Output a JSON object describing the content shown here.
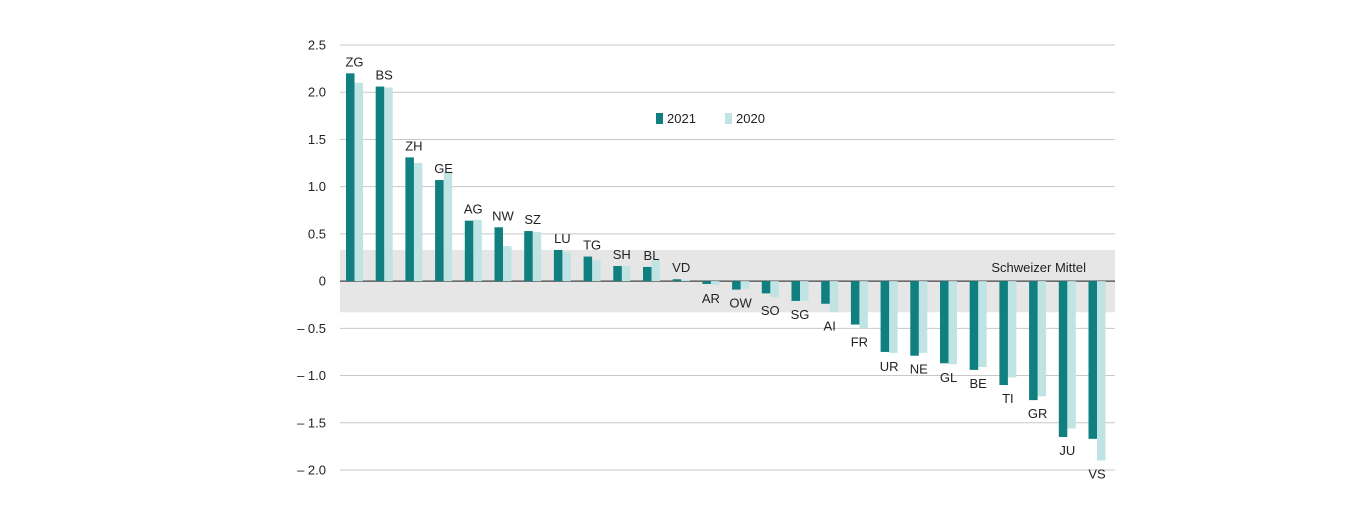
{
  "chart_data": {
    "type": "bar",
    "title": "",
    "xlabel": "",
    "ylabel": "",
    "ylim": [
      -2.0,
      2.5
    ],
    "yticks": [
      2.5,
      2.0,
      1.5,
      1.0,
      0.5,
      0,
      -0.5,
      -1.0,
      -1.5,
      -2.0
    ],
    "ytick_labels": [
      "2.5",
      "2.0",
      "1.5",
      "1.0",
      "0.5",
      "0",
      "– 0.5",
      "– 1.0",
      "– 1.5",
      "– 2.0"
    ],
    "grid": true,
    "legend_position": "top-center",
    "categories": [
      "ZG",
      "BS",
      "ZH",
      "GE",
      "AG",
      "NW",
      "SZ",
      "LU",
      "TG",
      "SH",
      "BL",
      "VD",
      "AR",
      "OW",
      "SO",
      "SG",
      "AI",
      "FR",
      "UR",
      "NE",
      "GL",
      "BE",
      "TI",
      "GR",
      "JU",
      "VS"
    ],
    "series": [
      {
        "name": "2021",
        "color": "#0f7f80",
        "values": [
          2.2,
          2.06,
          1.31,
          1.07,
          0.64,
          0.57,
          0.53,
          0.33,
          0.26,
          0.16,
          0.15,
          0.02,
          -0.03,
          -0.09,
          -0.13,
          -0.21,
          -0.24,
          -0.46,
          -0.75,
          -0.79,
          -0.87,
          -0.94,
          -1.1,
          -1.26,
          -1.65,
          -1.67
        ]
      },
      {
        "name": "2020",
        "color": "#bfe4e3",
        "values": [
          2.1,
          2.05,
          1.25,
          1.16,
          0.65,
          0.37,
          0.52,
          0.31,
          0.22,
          0.16,
          0.22,
          0.01,
          -0.04,
          -0.08,
          -0.17,
          -0.21,
          -0.33,
          -0.5,
          -0.76,
          -0.76,
          -0.88,
          -0.91,
          -1.02,
          -1.22,
          -1.56,
          -1.9
        ]
      }
    ],
    "band": {
      "label": "Schweizer Mittel",
      "range": [
        -0.33,
        0.33
      ],
      "color": "#e6e6e6"
    }
  }
}
